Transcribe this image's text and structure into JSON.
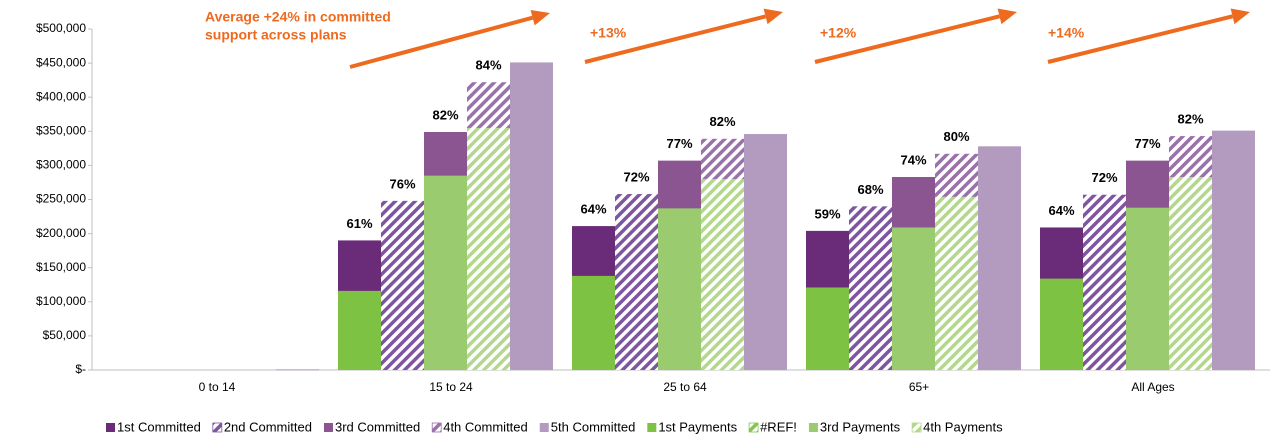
{
  "chart_data": {
    "type": "bar",
    "categories": [
      "0 to 14",
      "15 to 24",
      "25 to 64",
      "65+",
      "All Ages"
    ],
    "ylim": [
      0,
      500000
    ],
    "yticks": [
      {
        "value": 0,
        "label": "$-"
      },
      {
        "value": 50000,
        "label": "$50,000"
      },
      {
        "value": 100000,
        "label": "$100,000"
      },
      {
        "value": 150000,
        "label": "$150,000"
      },
      {
        "value": 200000,
        "label": "$200,000"
      },
      {
        "value": 250000,
        "label": "$250,000"
      },
      {
        "value": 300000,
        "label": "$300,000"
      },
      {
        "value": 350000,
        "label": "$350,000"
      },
      {
        "value": 400000,
        "label": "$400,000"
      },
      {
        "value": 450000,
        "label": "$450,000"
      },
      {
        "value": 500000,
        "label": "$500,000"
      }
    ],
    "series": [
      {
        "name": "1st Committed",
        "color": "#6a2b78",
        "pattern": "solid",
        "values": [
          null,
          190000,
          211000,
          204000,
          209000
        ]
      },
      {
        "name": "2nd Committed",
        "color": "#7e55a0",
        "pattern": "hatch",
        "values": [
          null,
          248000,
          258000,
          240000,
          257000
        ]
      },
      {
        "name": "3rd Committed",
        "color": "#8a5590",
        "pattern": "solid",
        "values": [
          null,
          349000,
          307000,
          283000,
          307000
        ]
      },
      {
        "name": "4th Committed",
        "color": "#9a72aa",
        "pattern": "hatch",
        "values": [
          null,
          422000,
          339000,
          317000,
          343000
        ]
      },
      {
        "name": "5th Committed",
        "color": "#b39bc0",
        "pattern": "solid",
        "values": [
          1000,
          451000,
          346000,
          328000,
          351000
        ]
      },
      {
        "name": "1st Payments",
        "color": "#7dc243",
        "pattern": "solid",
        "values": [
          null,
          116000,
          138000,
          121000,
          134000
        ]
      },
      {
        "name": "#REF!",
        "color": "#86c450",
        "pattern": "hatch",
        "values": [
          null,
          null,
          null,
          null,
          null
        ]
      },
      {
        "name": "3rd Payments",
        "color": "#9acb6e",
        "pattern": "solid",
        "values": [
          null,
          285000,
          237000,
          209000,
          238000
        ]
      },
      {
        "name": "4th Payments",
        "color": "#b3d88d",
        "pattern": "hatch",
        "values": [
          null,
          355000,
          280000,
          254000,
          283000
        ]
      }
    ],
    "ratio_labels": [
      [],
      [
        "61%",
        "76%",
        "82%",
        "84%"
      ],
      [
        "64%",
        "72%",
        "77%",
        "82%"
      ],
      [
        "59%",
        "68%",
        "74%",
        "80%"
      ],
      [
        "64%",
        "72%",
        "77%",
        "82%"
      ]
    ],
    "annotations": [
      [
        "Average +24% in committed",
        "support across plans"
      ],
      [
        "+13%"
      ],
      [
        "+12%"
      ],
      [
        "+14%"
      ]
    ],
    "annotation_color": "#ee6a1f"
  }
}
